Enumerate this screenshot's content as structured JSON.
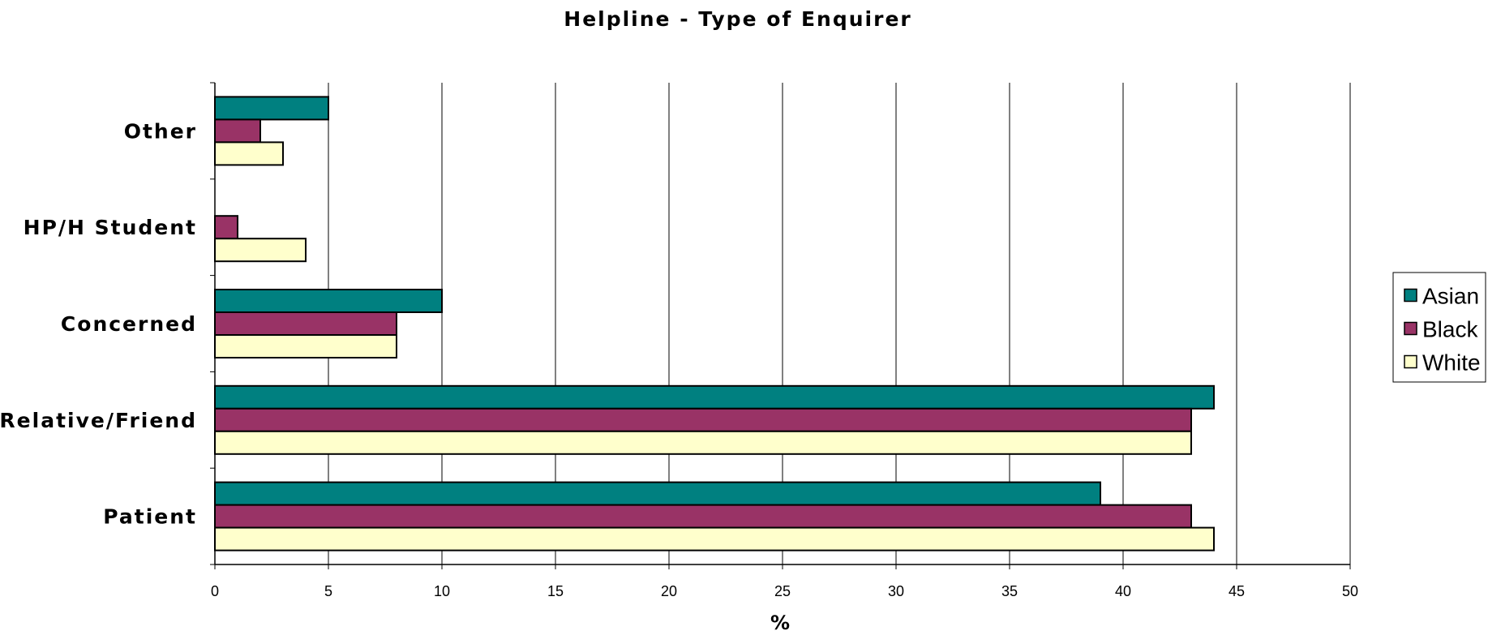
{
  "chart_data": {
    "type": "bar",
    "orientation": "horizontal",
    "title": "Helpline - Type of Enquirer",
    "xlabel": "%",
    "ylabel": "",
    "xlim": [
      0,
      50
    ],
    "x_ticks": [
      0,
      5,
      10,
      15,
      20,
      25,
      30,
      35,
      40,
      45,
      50
    ],
    "grid": "vertical",
    "legend_position": "right",
    "categories": [
      "Other",
      "HP/H Student",
      "Concerned",
      "Relative/Friend",
      "Patient"
    ],
    "series": [
      {
        "name": "Asian",
        "color": "#008080",
        "values": [
          5,
          0,
          10,
          44,
          39
        ]
      },
      {
        "name": "Black",
        "color": "#993366",
        "values": [
          2,
          1,
          8,
          43,
          43
        ]
      },
      {
        "name": "White",
        "color": "#FFFFCC",
        "values": [
          3,
          4,
          8,
          43,
          44
        ]
      }
    ]
  }
}
